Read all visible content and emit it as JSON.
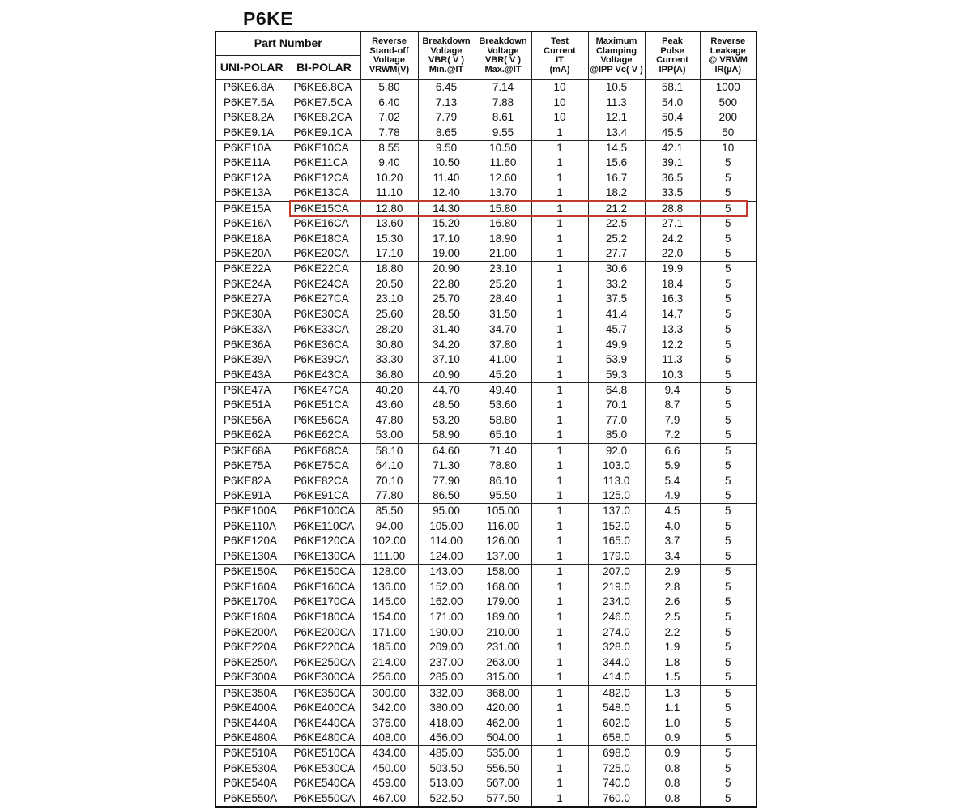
{
  "title": "P6KE",
  "highlight_part": "P6KE15A",
  "highlight_color": "#c0392b",
  "header": {
    "part_number": "Part Number",
    "uni_polar": "UNI-POLAR",
    "bi_polar": "BI-POLAR",
    "columns": [
      [
        "Reverse",
        "Stand-off",
        "Voltage",
        "VRWM(V)"
      ],
      [
        "Breakdown",
        "Voltage",
        "VBR( V )",
        "Min.@IT"
      ],
      [
        "Breakdown",
        "Voltage",
        "VBR( V )",
        "Max.@IT"
      ],
      [
        "Test",
        "Current",
        "IT",
        "(mA)"
      ],
      [
        "Maximum",
        "Clamping",
        "Voltage",
        "@IPP Vc( V )"
      ],
      [
        "Peak",
        "Pulse",
        "Current",
        "IPP(A)"
      ],
      [
        "Reverse",
        "Leakage",
        "@ VRWM",
        "IR(µA)"
      ]
    ]
  },
  "rows": [
    [
      "P6KE6.8A",
      "P6KE6.8CA",
      "5.80",
      "6.45",
      "7.14",
      "10",
      "10.5",
      "58.1",
      "1000"
    ],
    [
      "P6KE7.5A",
      "P6KE7.5CA",
      "6.40",
      "7.13",
      "7.88",
      "10",
      "11.3",
      "54.0",
      "500"
    ],
    [
      "P6KE8.2A",
      "P6KE8.2CA",
      "7.02",
      "7.79",
      "8.61",
      "10",
      "12.1",
      "50.4",
      "200"
    ],
    [
      "P6KE9.1A",
      "P6KE9.1CA",
      "7.78",
      "8.65",
      "9.55",
      "1",
      "13.4",
      "45.5",
      "50"
    ],
    [
      "P6KE10A",
      "P6KE10CA",
      "8.55",
      "9.50",
      "10.50",
      "1",
      "14.5",
      "42.1",
      "10"
    ],
    [
      "P6KE11A",
      "P6KE11CA",
      "9.40",
      "10.50",
      "11.60",
      "1",
      "15.6",
      "39.1",
      "5"
    ],
    [
      "P6KE12A",
      "P6KE12CA",
      "10.20",
      "11.40",
      "12.60",
      "1",
      "16.7",
      "36.5",
      "5"
    ],
    [
      "P6KE13A",
      "P6KE13CA",
      "11.10",
      "12.40",
      "13.70",
      "1",
      "18.2",
      "33.5",
      "5"
    ],
    [
      "P6KE15A",
      "P6KE15CA",
      "12.80",
      "14.30",
      "15.80",
      "1",
      "21.2",
      "28.8",
      "5"
    ],
    [
      "P6KE16A",
      "P6KE16CA",
      "13.60",
      "15.20",
      "16.80",
      "1",
      "22.5",
      "27.1",
      "5"
    ],
    [
      "P6KE18A",
      "P6KE18CA",
      "15.30",
      "17.10",
      "18.90",
      "1",
      "25.2",
      "24.2",
      "5"
    ],
    [
      "P6KE20A",
      "P6KE20CA",
      "17.10",
      "19.00",
      "21.00",
      "1",
      "27.7",
      "22.0",
      "5"
    ],
    [
      "P6KE22A",
      "P6KE22CA",
      "18.80",
      "20.90",
      "23.10",
      "1",
      "30.6",
      "19.9",
      "5"
    ],
    [
      "P6KE24A",
      "P6KE24CA",
      "20.50",
      "22.80",
      "25.20",
      "1",
      "33.2",
      "18.4",
      "5"
    ],
    [
      "P6KE27A",
      "P6KE27CA",
      "23.10",
      "25.70",
      "28.40",
      "1",
      "37.5",
      "16.3",
      "5"
    ],
    [
      "P6KE30A",
      "P6KE30CA",
      "25.60",
      "28.50",
      "31.50",
      "1",
      "41.4",
      "14.7",
      "5"
    ],
    [
      "P6KE33A",
      "P6KE33CA",
      "28.20",
      "31.40",
      "34.70",
      "1",
      "45.7",
      "13.3",
      "5"
    ],
    [
      "P6KE36A",
      "P6KE36CA",
      "30.80",
      "34.20",
      "37.80",
      "1",
      "49.9",
      "12.2",
      "5"
    ],
    [
      "P6KE39A",
      "P6KE39CA",
      "33.30",
      "37.10",
      "41.00",
      "1",
      "53.9",
      "11.3",
      "5"
    ],
    [
      "P6KE43A",
      "P6KE43CA",
      "36.80",
      "40.90",
      "45.20",
      "1",
      "59.3",
      "10.3",
      "5"
    ],
    [
      "P6KE47A",
      "P6KE47CA",
      "40.20",
      "44.70",
      "49.40",
      "1",
      "64.8",
      "9.4",
      "5"
    ],
    [
      "P6KE51A",
      "P6KE51CA",
      "43.60",
      "48.50",
      "53.60",
      "1",
      "70.1",
      "8.7",
      "5"
    ],
    [
      "P6KE56A",
      "P6KE56CA",
      "47.80",
      "53.20",
      "58.80",
      "1",
      "77.0",
      "7.9",
      "5"
    ],
    [
      "P6KE62A",
      "P6KE62CA",
      "53.00",
      "58.90",
      "65.10",
      "1",
      "85.0",
      "7.2",
      "5"
    ],
    [
      "P6KE68A",
      "P6KE68CA",
      "58.10",
      "64.60",
      "71.40",
      "1",
      "92.0",
      "6.6",
      "5"
    ],
    [
      "P6KE75A",
      "P6KE75CA",
      "64.10",
      "71.30",
      "78.80",
      "1",
      "103.0",
      "5.9",
      "5"
    ],
    [
      "P6KE82A",
      "P6KE82CA",
      "70.10",
      "77.90",
      "86.10",
      "1",
      "113.0",
      "5.4",
      "5"
    ],
    [
      "P6KE91A",
      "P6KE91CA",
      "77.80",
      "86.50",
      "95.50",
      "1",
      "125.0",
      "4.9",
      "5"
    ],
    [
      "P6KE100A",
      "P6KE100CA",
      "85.50",
      "95.00",
      "105.00",
      "1",
      "137.0",
      "4.5",
      "5"
    ],
    [
      "P6KE110A",
      "P6KE110CA",
      "94.00",
      "105.00",
      "116.00",
      "1",
      "152.0",
      "4.0",
      "5"
    ],
    [
      "P6KE120A",
      "P6KE120CA",
      "102.00",
      "114.00",
      "126.00",
      "1",
      "165.0",
      "3.7",
      "5"
    ],
    [
      "P6KE130A",
      "P6KE130CA",
      "111.00",
      "124.00",
      "137.00",
      "1",
      "179.0",
      "3.4",
      "5"
    ],
    [
      "P6KE150A",
      "P6KE150CA",
      "128.00",
      "143.00",
      "158.00",
      "1",
      "207.0",
      "2.9",
      "5"
    ],
    [
      "P6KE160A",
      "P6KE160CA",
      "136.00",
      "152.00",
      "168.00",
      "1",
      "219.0",
      "2.8",
      "5"
    ],
    [
      "P6KE170A",
      "P6KE170CA",
      "145.00",
      "162.00",
      "179.00",
      "1",
      "234.0",
      "2.6",
      "5"
    ],
    [
      "P6KE180A",
      "P6KE180CA",
      "154.00",
      "171.00",
      "189.00",
      "1",
      "246.0",
      "2.5",
      "5"
    ],
    [
      "P6KE200A",
      "P6KE200CA",
      "171.00",
      "190.00",
      "210.00",
      "1",
      "274.0",
      "2.2",
      "5"
    ],
    [
      "P6KE220A",
      "P6KE220CA",
      "185.00",
      "209.00",
      "231.00",
      "1",
      "328.0",
      "1.9",
      "5"
    ],
    [
      "P6KE250A",
      "P6KE250CA",
      "214.00",
      "237.00",
      "263.00",
      "1",
      "344.0",
      "1.8",
      "5"
    ],
    [
      "P6KE300A",
      "P6KE300CA",
      "256.00",
      "285.00",
      "315.00",
      "1",
      "414.0",
      "1.5",
      "5"
    ],
    [
      "P6KE350A",
      "P6KE350CA",
      "300.00",
      "332.00",
      "368.00",
      "1",
      "482.0",
      "1.3",
      "5"
    ],
    [
      "P6KE400A",
      "P6KE400CA",
      "342.00",
      "380.00",
      "420.00",
      "1",
      "548.0",
      "1.1",
      "5"
    ],
    [
      "P6KE440A",
      "P6KE440CA",
      "376.00",
      "418.00",
      "462.00",
      "1",
      "602.0",
      "1.0",
      "5"
    ],
    [
      "P6KE480A",
      "P6KE480CA",
      "408.00",
      "456.00",
      "504.00",
      "1",
      "658.0",
      "0.9",
      "5"
    ],
    [
      "P6KE510A",
      "P6KE510CA",
      "434.00",
      "485.00",
      "535.00",
      "1",
      "698.0",
      "0.9",
      "5"
    ],
    [
      "P6KE530A",
      "P6KE530CA",
      "450.00",
      "503.50",
      "556.50",
      "1",
      "725.0",
      "0.8",
      "5"
    ],
    [
      "P6KE540A",
      "P6KE540CA",
      "459.00",
      "513.00",
      "567.00",
      "1",
      "740.0",
      "0.8",
      "5"
    ],
    [
      "P6KE550A",
      "P6KE550CA",
      "467.00",
      "522.50",
      "577.50",
      "1",
      "760.0",
      "0.8",
      "5"
    ]
  ]
}
